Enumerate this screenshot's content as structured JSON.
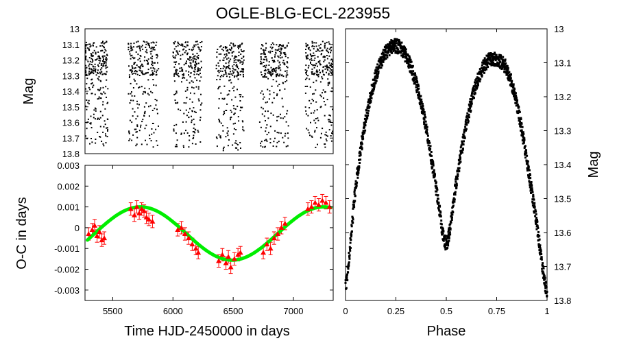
{
  "title": "OGLE-BLG-ECL-223955",
  "colors": {
    "points": "#000000",
    "oc_points": "#ff0000",
    "fit": "#00ee00",
    "frame": "#000000"
  },
  "chart_data": [
    {
      "id": "light_curve_time",
      "type": "scatter",
      "ylabel": "Mag",
      "xlabel": "",
      "ylim": [
        13.8,
        13.0
      ],
      "y_inverted": true,
      "yticks": [
        "13",
        "13.1",
        "13.2",
        "13.3",
        "13.4",
        "13.5",
        "13.6",
        "13.7",
        "13.8"
      ],
      "xticks_labels": "none",
      "xlim": [
        5270,
        7330
      ],
      "seasons": [
        {
          "start": 5260,
          "end": 5460,
          "mag_bright": 13.08,
          "mag_faint": 13.75
        },
        {
          "start": 5630,
          "end": 5880,
          "mag_bright": 13.08,
          "mag_faint": 13.76
        },
        {
          "start": 6000,
          "end": 6240,
          "mag_bright": 13.08,
          "mag_faint": 13.76
        },
        {
          "start": 6360,
          "end": 6590,
          "mag_bright": 13.09,
          "mag_faint": 13.78
        },
        {
          "start": 6720,
          "end": 6960,
          "mag_bright": 13.09,
          "mag_faint": 13.77
        },
        {
          "start": 7100,
          "end": 7330,
          "mag_bright": 13.08,
          "mag_faint": 13.76
        }
      ],
      "grid": false
    },
    {
      "id": "oc_diagram",
      "type": "scatter",
      "xlabel": "Time HJD-2450000 in days",
      "ylabel": "O-C in days",
      "xlim": [
        5270,
        7330
      ],
      "ylim": [
        -0.0035,
        0.003
      ],
      "xticks": [
        "5500",
        "6000",
        "6500",
        "7000"
      ],
      "yticks": [
        "0.003",
        "0.002",
        "0.001",
        "0",
        "-0.001",
        "-0.002",
        "-0.003"
      ],
      "series": [
        {
          "kind": "points_with_errorbars",
          "marker": "triangle",
          "x": [
            5300,
            5330,
            5350,
            5370,
            5390,
            5410,
            5430,
            5650,
            5680,
            5700,
            5720,
            5740,
            5760,
            5780,
            5800,
            5830,
            6040,
            6070,
            6100,
            6130,
            6160,
            6190,
            6210,
            6380,
            6410,
            6440,
            6460,
            6480,
            6510,
            6540,
            6560,
            6750,
            6780,
            6810,
            6840,
            6870,
            6900,
            6930,
            7120,
            7150,
            7180,
            7210,
            7240,
            7270,
            7300
          ],
          "y": [
            -0.0003,
            -0.0001,
            0.0001,
            -0.0004,
            -0.0002,
            -0.0006,
            -0.0005,
            0.0009,
            0.0006,
            0.001,
            0.0007,
            0.0009,
            0.0008,
            0.0005,
            0.0004,
            0.0003,
            -0.0001,
            0.0,
            -0.0003,
            -0.0005,
            -0.0008,
            -0.001,
            -0.0012,
            -0.0016,
            -0.0013,
            -0.0017,
            -0.0014,
            -0.0019,
            -0.0015,
            -0.0013,
            -0.0012,
            -0.0012,
            -0.0008,
            -0.001,
            -0.0005,
            -0.0003,
            0.0,
            0.0002,
            0.0009,
            0.001,
            0.0012,
            0.0011,
            0.0013,
            0.0012,
            0.001
          ],
          "yerr": 0.0003
        },
        {
          "kind": "fit_curve",
          "model": "sinusoid",
          "amplitude": 0.00128,
          "period": 1520,
          "phase_of_max": 5730,
          "offset": -0.00028
        }
      ],
      "grid": false
    },
    {
      "id": "phased_light_curve",
      "type": "scatter",
      "xlabel": "Phase",
      "ylabel": "Mag",
      "xlim": [
        0,
        1
      ],
      "ylim": [
        13.8,
        13.0
      ],
      "y_inverted": true,
      "y_axis_side": "right",
      "xticks": [
        "0",
        "0.25",
        "0.5",
        "0.75",
        "1"
      ],
      "yticks": [
        "13",
        "13.1",
        "13.2",
        "13.3",
        "13.4",
        "13.5",
        "13.6",
        "13.7",
        "13.8"
      ],
      "curve_keypoints": {
        "phase": [
          0.0,
          0.05,
          0.1,
          0.15,
          0.2,
          0.25,
          0.3,
          0.35,
          0.4,
          0.45,
          0.5,
          0.55,
          0.6,
          0.65,
          0.7,
          0.75,
          0.8,
          0.85,
          0.9,
          0.95,
          1.0
        ],
        "mag": [
          13.76,
          13.47,
          13.27,
          13.14,
          13.07,
          13.05,
          13.08,
          13.16,
          13.29,
          13.47,
          13.63,
          13.45,
          13.28,
          13.16,
          13.1,
          13.09,
          13.12,
          13.22,
          13.39,
          13.58,
          13.78
        ]
      },
      "scatter_width_mag": 0.03,
      "grid": false
    }
  ]
}
